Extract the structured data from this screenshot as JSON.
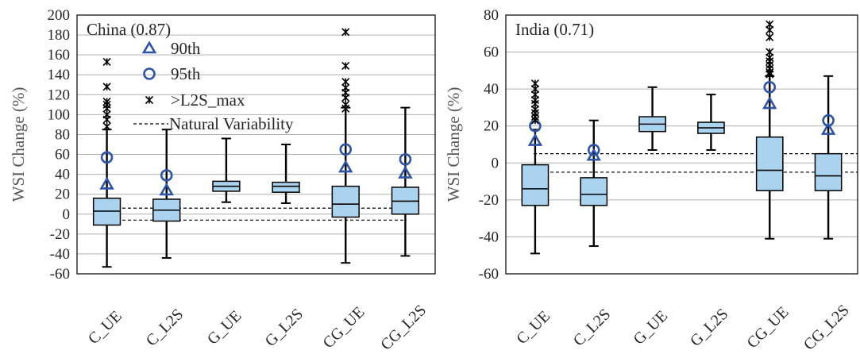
{
  "chart_data": [
    {
      "type": "box",
      "title": "China (0.87)",
      "ylabel": "WSI Change (%)",
      "ylim": [
        -60,
        200
      ],
      "yticks": [
        "-60",
        "-40",
        "-20",
        "0",
        "20",
        "40",
        "60",
        "80",
        "100",
        "120",
        "140",
        "160",
        "180",
        "200"
      ],
      "grid": "horizontal",
      "categories": [
        "C_UE",
        "C_L2S",
        "G_UE",
        "G_L2S",
        "CG_UE",
        "CG_L2S"
      ],
      "boxes": [
        {
          "min": -53,
          "q1": -11,
          "median": 3,
          "q3": 16,
          "max": 85,
          "p90": 30,
          "p95": 57,
          "outliers": [
            153,
            128,
            113,
            110,
            106,
            100,
            95,
            88
          ]
        },
        {
          "min": -44,
          "q1": -7,
          "median": 4,
          "q3": 15,
          "max": 85,
          "p90": 24,
          "p95": 39,
          "outliers": []
        },
        {
          "min": 12,
          "q1": 23,
          "median": 28,
          "q3": 33,
          "max": 76,
          "p90": null,
          "p95": null,
          "outliers": []
        },
        {
          "min": 11,
          "q1": 22,
          "median": 28,
          "q3": 32,
          "max": 70,
          "p90": null,
          "p95": null,
          "outliers": []
        },
        {
          "min": -49,
          "q1": -3,
          "median": 10,
          "q3": 28,
          "max": 107,
          "p90": 47,
          "p95": 65,
          "outliers": [
            183,
            149,
            133,
            127,
            122,
            117,
            110,
            106
          ]
        },
        {
          "min": -42,
          "q1": 0,
          "median": 13,
          "q3": 27,
          "max": 107,
          "p90": 41,
          "p95": 55,
          "outliers": []
        }
      ],
      "natural_variability": [
        6,
        -6
      ],
      "legend": [
        "90th",
        "95th",
        ">L2S_max",
        "Natural Variability"
      ]
    },
    {
      "type": "box",
      "title": "India (0.71)",
      "ylabel": "WSI Change (%)",
      "ylim": [
        -60,
        80
      ],
      "yticks": [
        "-60",
        "-40",
        "-20",
        "0",
        "20",
        "40",
        "60",
        "80"
      ],
      "grid": "horizontal",
      "categories": [
        "C_UE",
        "C_L2S",
        "G_UE",
        "G_L2S",
        "CG_UE",
        "CG_L2S"
      ],
      "boxes": [
        {
          "min": -49,
          "q1": -23,
          "median": -14,
          "q3": -1,
          "max": 18,
          "p90": 12,
          "p95": 20,
          "outliers": [
            43,
            40,
            37,
            34,
            32,
            29,
            27,
            25,
            23
          ]
        },
        {
          "min": -45,
          "q1": -23,
          "median": -17,
          "q3": -8,
          "max": 23,
          "p90": 4,
          "p95": 7,
          "outliers": []
        },
        {
          "min": 7,
          "q1": 17,
          "median": 21,
          "q3": 25,
          "max": 41,
          "p90": null,
          "p95": null,
          "outliers": []
        },
        {
          "min": 7,
          "q1": 16,
          "median": 19,
          "q3": 22,
          "max": 37,
          "p90": null,
          "p95": null,
          "outliers": []
        },
        {
          "min": -41,
          "q1": -15,
          "median": -4,
          "q3": 14,
          "max": 47,
          "p90": 32,
          "p95": 41,
          "outliers": [
            75,
            72,
            68,
            60,
            57,
            55,
            53,
            51,
            49,
            48
          ]
        },
        {
          "min": -41,
          "q1": -15,
          "median": -7,
          "q3": 5,
          "max": 47,
          "p90": 18,
          "p95": 23,
          "outliers": []
        }
      ],
      "natural_variability": [
        5,
        -5
      ]
    }
  ],
  "colors": {
    "box_fill": "#a9d3ef",
    "marker_blue": "#2e54a8",
    "grid": "#b0b0b0",
    "ink": "#000000"
  }
}
